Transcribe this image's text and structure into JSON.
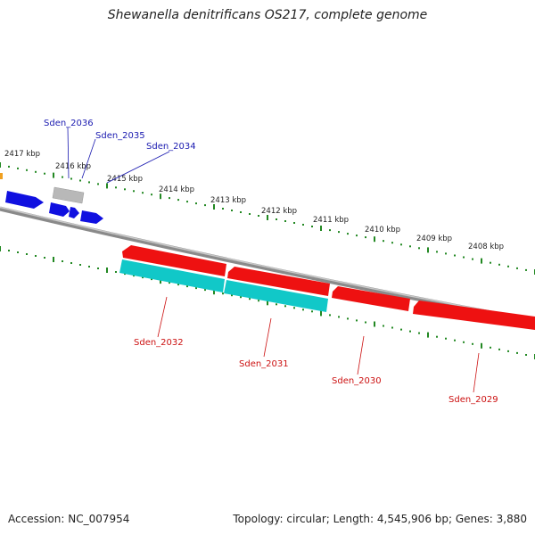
{
  "title": "Shewanella denitrificans OS217, complete genome",
  "footer": {
    "accession": "Accession: NC_007954",
    "summary": "Topology: circular; Length: 4,545,906 bp; Genes: 3,880"
  },
  "colors": {
    "forward_gene": "#1010e0",
    "reverse_gene": "#ee1111",
    "cyan_gene": "#11c8c8",
    "pseudo_gene": "#b8b8b8",
    "backbone": "#808080",
    "tick": "#228822",
    "forward_label": "#1a1ab0",
    "reverse_label": "#cc1111"
  },
  "scale": {
    "unit": "kbp",
    "labels": [
      "2417 kbp",
      "2416 kbp",
      "2415 kbp",
      "2414 kbp",
      "2413 kbp",
      "2412 kbp",
      "2411 kbp",
      "2410 kbp",
      "2409 kbp",
      "2408 kbp"
    ]
  },
  "genes": {
    "forward": [
      "Sden_2036",
      "Sden_2035",
      "Sden_2034"
    ],
    "reverse": [
      "Sden_2032",
      "Sden_2031",
      "Sden_2030",
      "Sden_2029"
    ]
  }
}
